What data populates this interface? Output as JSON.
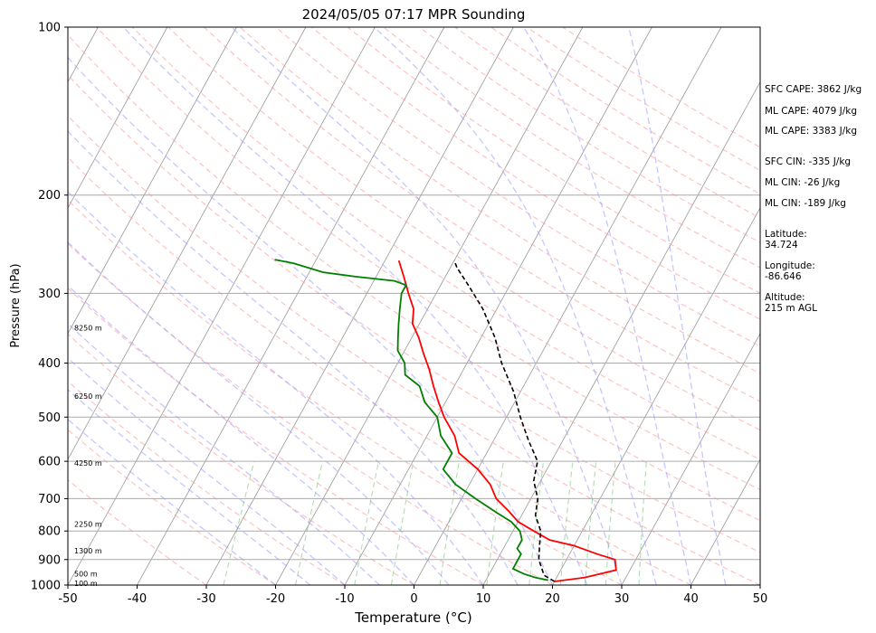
{
  "chart_data": {
    "type": "line",
    "title": "2024/05/05 07:17 MPR Sounding",
    "xlabel": "Temperature (°C)",
    "ylabel": "Pressure (hPa)",
    "xlim": [
      -50,
      50
    ],
    "ylim": [
      1000,
      100
    ],
    "y_scale": "log",
    "skew": "skew-T log-P",
    "xticks": [
      -50,
      -40,
      -30,
      -20,
      -10,
      0,
      10,
      20,
      30,
      40,
      50
    ],
    "yticks": [
      1000,
      900,
      800,
      700,
      600,
      500,
      400,
      300,
      200,
      100
    ],
    "grid": true,
    "series": [
      {
        "color": "#ff0000",
        "points": [
          [
            20,
            985
          ],
          [
            24,
            970
          ],
          [
            28,
            940
          ],
          [
            27,
            900
          ],
          [
            24,
            880
          ],
          [
            20,
            850
          ],
          [
            16,
            830
          ],
          [
            13,
            800
          ],
          [
            10,
            770
          ],
          [
            8,
            740
          ],
          [
            5,
            700
          ],
          [
            3,
            660
          ],
          [
            0,
            620
          ],
          [
            -4,
            580
          ],
          [
            -6,
            540
          ],
          [
            -9,
            500
          ],
          [
            -11,
            470
          ],
          [
            -13,
            440
          ],
          [
            -15,
            410
          ],
          [
            -17,
            385
          ],
          [
            -19,
            360
          ],
          [
            -21,
            340
          ],
          [
            -22,
            320
          ],
          [
            -24,
            300
          ],
          [
            -26,
            280
          ],
          [
            -28,
            262
          ]
        ]
      },
      {
        "color": "#008000",
        "points": [
          [
            19,
            980
          ],
          [
            17,
            970
          ],
          [
            15,
            955
          ],
          [
            13,
            935
          ],
          [
            13,
            910
          ],
          [
            13,
            880
          ],
          [
            12,
            860
          ],
          [
            12,
            830
          ],
          [
            11,
            800
          ],
          [
            9,
            770
          ],
          [
            6,
            740
          ],
          [
            2,
            700
          ],
          [
            -2,
            660
          ],
          [
            -5,
            620
          ],
          [
            -5,
            580
          ],
          [
            -8,
            540
          ],
          [
            -10,
            500
          ],
          [
            -13,
            470
          ],
          [
            -15,
            440
          ],
          [
            -18,
            420
          ],
          [
            -19,
            400
          ],
          [
            -21,
            380
          ],
          [
            -22,
            360
          ],
          [
            -23,
            340
          ],
          [
            -24,
            320
          ],
          [
            -25,
            300
          ],
          [
            -25,
            290
          ],
          [
            -27,
            285
          ],
          [
            -33,
            280
          ],
          [
            -38,
            275
          ],
          [
            -43,
            265
          ],
          [
            -46,
            261
          ]
        ]
      },
      {
        "color": "#000000",
        "points": [
          [
            20,
            985
          ],
          [
            18,
            960
          ],
          [
            16,
            900
          ],
          [
            15,
            850
          ],
          [
            14,
            800
          ],
          [
            12,
            750
          ],
          [
            11,
            700
          ],
          [
            9,
            650
          ],
          [
            8,
            600
          ],
          [
            5,
            550
          ],
          [
            2,
            500
          ],
          [
            -1,
            450
          ],
          [
            -5,
            400
          ],
          [
            -8,
            360
          ],
          [
            -12,
            320
          ],
          [
            -16,
            290
          ],
          [
            -19,
            270
          ],
          [
            -20,
            262
          ]
        ]
      }
    ],
    "background_lines": {
      "dry_adiabats_color": "#ff9999",
      "moist_adiabats_color": "#9999ff",
      "mixing_ratio_color": "#66bb66",
      "isotherm_color": "#999999"
    },
    "height_labels": [
      {
        "text": "100 m",
        "p": 992
      },
      {
        "text": "500 m",
        "p": 955
      },
      {
        "text": "1300 m",
        "p": 868
      },
      {
        "text": "2250 m",
        "p": 778
      },
      {
        "text": "4250 m",
        "p": 604
      },
      {
        "text": "6250 m",
        "p": 458
      },
      {
        "text": "8250 m",
        "p": 346
      }
    ]
  },
  "side_info": {
    "sfc_cape": "SFC CAPE: 3862 J/kg",
    "ml_cape_1": "ML CAPE: 4079 J/kg",
    "ml_cape_2": "ML CAPE: 3383 J/kg",
    "sfc_cin": "SFC CIN: -335 J/kg",
    "ml_cin_1": "ML CIN: -26 J/kg",
    "ml_cin_2": "ML CIN: -189 J/kg",
    "latitude_label": "Latitude:",
    "latitude_value": "34.724",
    "longitude_label": "Longitude:",
    "longitude_value": "-86.646",
    "altitude_label": "Altitude:",
    "altitude_value": "215 m AGL"
  }
}
